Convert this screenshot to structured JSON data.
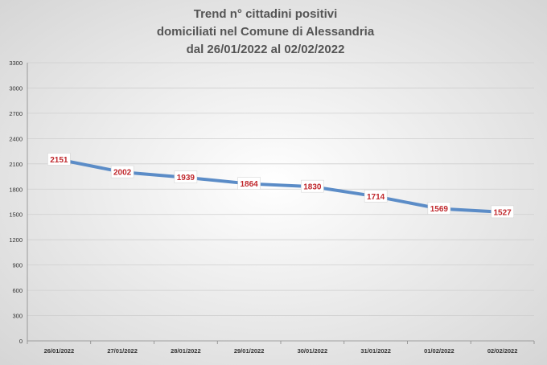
{
  "chart_data": {
    "type": "line",
    "title": [
      "Trend n° cittadini positivi",
      "domiciliati nel Comune di Alessandria",
      "dal 26/01/2022 al 02/02/2022"
    ],
    "categories": [
      "26/01/2022",
      "27/01/2022",
      "28/01/2022",
      "29/01/2022",
      "30/01/2022",
      "31/01/2022",
      "01/02/2022",
      "02/02/2022"
    ],
    "series": [
      {
        "values": [
          2151,
          2002,
          1939,
          1864,
          1830,
          1714,
          1569,
          1527
        ]
      }
    ],
    "data_labels": [
      "2151",
      "2002",
      "1939",
      "1864",
      "1830",
      "1714",
      "1569",
      "1527"
    ],
    "ylim": [
      0,
      3300
    ],
    "yticks": [
      0,
      300,
      600,
      900,
      1200,
      1500,
      1800,
      2100,
      2400,
      2700,
      3000,
      3300
    ],
    "ytick_labels": [
      "0",
      "300",
      "600",
      "900",
      "1200",
      "1500",
      "1800",
      "2100",
      "2400",
      "2700",
      "3000",
      "3300"
    ],
    "grid": true,
    "xlabel": "",
    "ylabel": "",
    "colors": {
      "line": "#5b8cc7",
      "label_text": "#c0282d",
      "title": "#555555",
      "gridline": "#cfcfcf",
      "plot_bg_center": "#ffffff",
      "plot_bg_edge": "#d9d9d9"
    }
  }
}
